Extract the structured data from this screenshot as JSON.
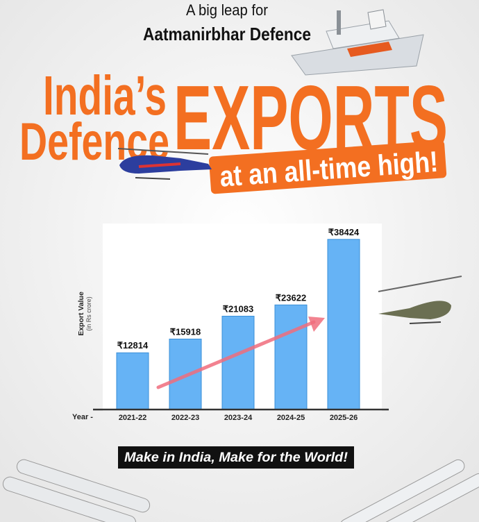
{
  "header": {
    "kicker": "A big leap for",
    "subtitle": "Aatmanirbhar Defence",
    "title_line1": "India’s",
    "title_line2": "Defence",
    "title_big": "EXPORTS",
    "banner": "at an all-time high!"
  },
  "chart_data": {
    "type": "bar",
    "y_label": "Export Value",
    "y_sublabel": "(in Rs crore)",
    "x_label": "Year -",
    "categories": [
      "2021-22",
      "2022-23",
      "2023-24",
      "2024-25",
      "2025-26"
    ],
    "values": [
      12814,
      15918,
      21083,
      23622,
      38424
    ],
    "value_labels": [
      "₹12814",
      "₹15918",
      "₹21083",
      "₹23622",
      "₹38424"
    ],
    "color": "#66b3f5",
    "ylim": [
      0,
      42000
    ]
  },
  "footer": {
    "tagline": "Make in India, Make for the World!"
  }
}
